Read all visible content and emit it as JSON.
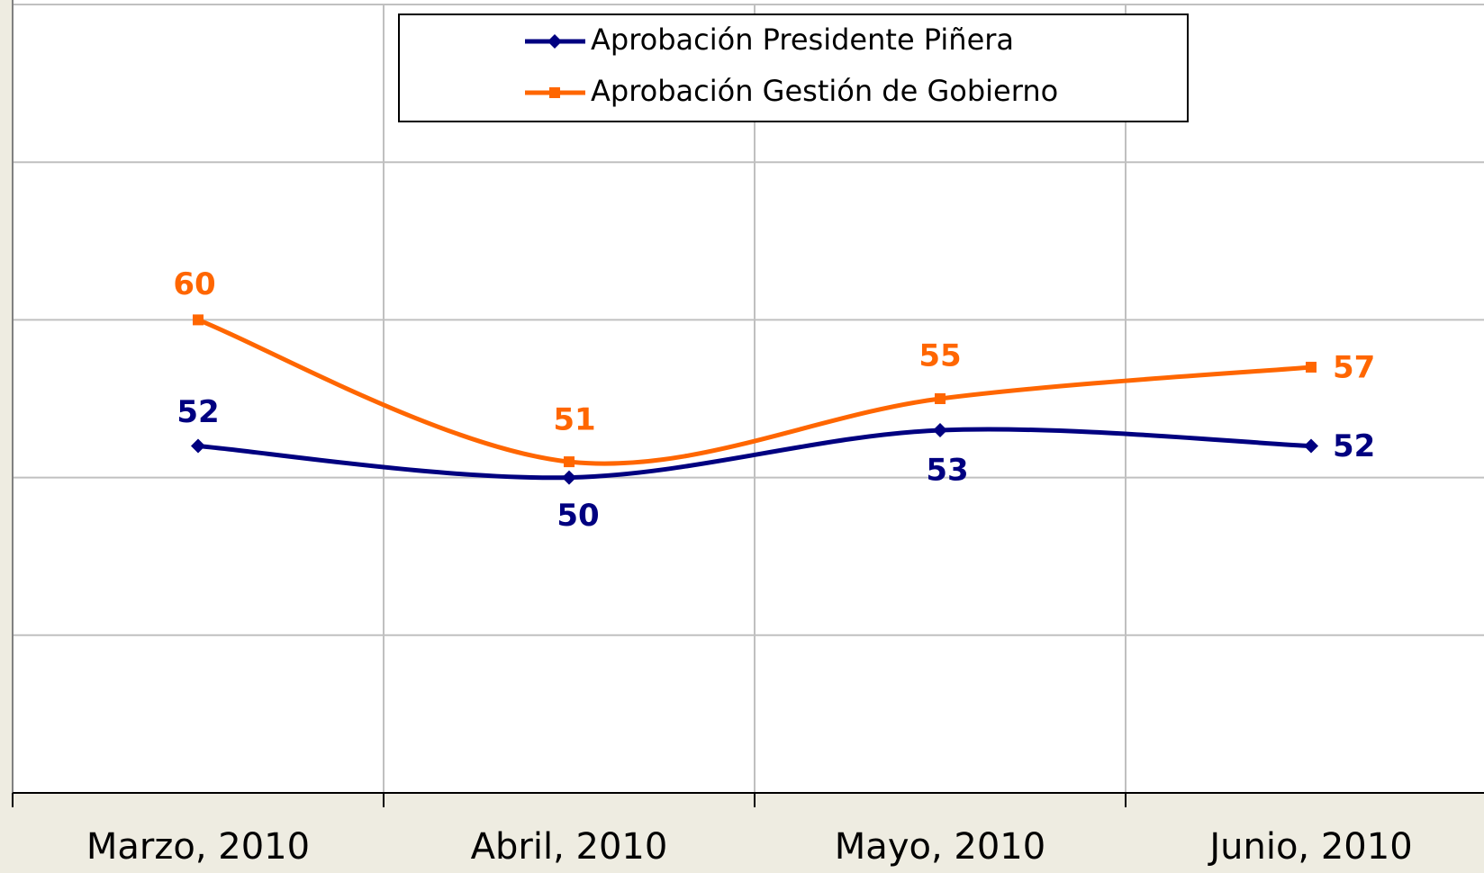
{
  "chart_data": {
    "type": "line",
    "categories": [
      "Marzo, 2010",
      "Abril, 2010",
      "Mayo, 2010",
      "Junio, 2010"
    ],
    "series": [
      {
        "name": "Aprobación Presidente Piñera",
        "color": "#000080",
        "marker": "diamond",
        "values": [
          52,
          50,
          53,
          52
        ]
      },
      {
        "name": "Aprobación Gestión de Gobierno",
        "color": "#ff6600",
        "marker": "square",
        "values": [
          60,
          51,
          55,
          57
        ]
      }
    ],
    "ylim": [
      30,
      80
    ],
    "yticks": [
      30,
      40,
      50,
      60,
      70,
      80
    ],
    "grid": true,
    "legend": "top"
  }
}
